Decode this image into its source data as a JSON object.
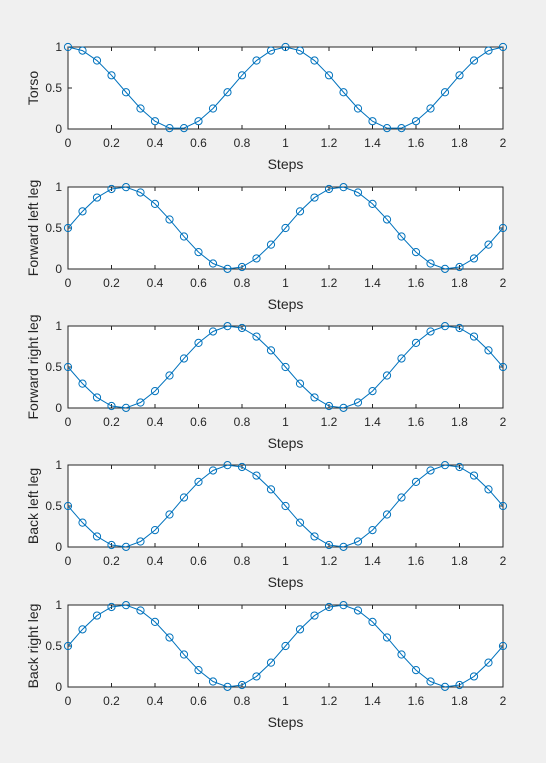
{
  "figure": {
    "background": "#f0f0f0",
    "plot_background": "#ffffff",
    "line_color": "#0072bd"
  },
  "chart_data": [
    {
      "type": "line",
      "xlabel": "Steps",
      "ylabel": "Torso",
      "xlim": [
        0,
        2
      ],
      "ylim": [
        0,
        1
      ],
      "xticks": [
        "0",
        "0.2",
        "0.4",
        "0.6",
        "0.8",
        "1",
        "1.2",
        "1.4",
        "1.6",
        "1.8",
        "2"
      ],
      "yticks": [
        "0",
        "0.5",
        "1"
      ],
      "grid": false,
      "marker": "circle",
      "series": [
        {
          "x": [
            0,
            0.0667,
            0.1333,
            0.2,
            0.2667,
            0.3333,
            0.4,
            0.4667,
            0.5333,
            0.6,
            0.6667,
            0.7333,
            0.8,
            0.8667,
            0.9333,
            1.0,
            1.0667,
            1.1333,
            1.2,
            1.2667,
            1.3333,
            1.4,
            1.4667,
            1.5333,
            1.6,
            1.6667,
            1.7333,
            1.8,
            1.8667,
            1.9333,
            2.0
          ],
          "y": [
            1.0,
            0.956,
            0.835,
            0.655,
            0.448,
            0.25,
            0.095,
            0.011,
            0.011,
            0.095,
            0.25,
            0.448,
            0.655,
            0.835,
            0.956,
            1.0,
            0.956,
            0.835,
            0.655,
            0.448,
            0.25,
            0.095,
            0.011,
            0.011,
            0.095,
            0.25,
            0.448,
            0.655,
            0.835,
            0.956,
            1.0
          ]
        }
      ]
    },
    {
      "type": "line",
      "xlabel": "Steps",
      "ylabel": "Forward left leg",
      "xlim": [
        0,
        2
      ],
      "ylim": [
        0,
        1
      ],
      "xticks": [
        "0",
        "0.2",
        "0.4",
        "0.6",
        "0.8",
        "1",
        "1.2",
        "1.4",
        "1.6",
        "1.8",
        "2"
      ],
      "yticks": [
        "0",
        "0.5",
        "1"
      ],
      "grid": false,
      "marker": "circle",
      "series": [
        {
          "x": [
            0,
            0.0667,
            0.1333,
            0.2,
            0.2667,
            0.3333,
            0.4,
            0.4667,
            0.5333,
            0.6,
            0.6667,
            0.7333,
            0.8,
            0.8667,
            0.9333,
            1.0,
            1.0667,
            1.1333,
            1.2,
            1.2667,
            1.3333,
            1.4,
            1.4667,
            1.5333,
            1.6,
            1.6667,
            1.7333,
            1.8,
            1.8667,
            1.9333,
            2.0
          ],
          "y": [
            0.5,
            0.703,
            0.871,
            0.976,
            0.998,
            0.933,
            0.794,
            0.604,
            0.396,
            0.206,
            0.067,
            0.002,
            0.024,
            0.129,
            0.297,
            0.5,
            0.703,
            0.871,
            0.976,
            0.998,
            0.933,
            0.794,
            0.604,
            0.396,
            0.206,
            0.067,
            0.002,
            0.024,
            0.129,
            0.297,
            0.5
          ]
        }
      ]
    },
    {
      "type": "line",
      "xlabel": "Steps",
      "ylabel": "Forward right leg",
      "xlim": [
        0,
        2
      ],
      "ylim": [
        0,
        1
      ],
      "xticks": [
        "0",
        "0.2",
        "0.4",
        "0.6",
        "0.8",
        "1",
        "1.2",
        "1.4",
        "1.6",
        "1.8",
        "2"
      ],
      "yticks": [
        "0",
        "0.5",
        "1"
      ],
      "grid": false,
      "marker": "circle",
      "series": [
        {
          "x": [
            0,
            0.0667,
            0.1333,
            0.2,
            0.2667,
            0.3333,
            0.4,
            0.4667,
            0.5333,
            0.6,
            0.6667,
            0.7333,
            0.8,
            0.8667,
            0.9333,
            1.0,
            1.0667,
            1.1333,
            1.2,
            1.2667,
            1.3333,
            1.4,
            1.4667,
            1.5333,
            1.6,
            1.6667,
            1.7333,
            1.8,
            1.8667,
            1.9333,
            2.0
          ],
          "y": [
            0.5,
            0.297,
            0.129,
            0.024,
            0.002,
            0.067,
            0.206,
            0.396,
            0.604,
            0.794,
            0.933,
            0.998,
            0.976,
            0.871,
            0.703,
            0.5,
            0.297,
            0.129,
            0.024,
            0.002,
            0.067,
            0.206,
            0.396,
            0.604,
            0.794,
            0.933,
            0.998,
            0.976,
            0.871,
            0.703,
            0.5
          ]
        }
      ]
    },
    {
      "type": "line",
      "xlabel": "Steps",
      "ylabel": "Back left leg",
      "xlim": [
        0,
        2
      ],
      "ylim": [
        0,
        1
      ],
      "xticks": [
        "0",
        "0.2",
        "0.4",
        "0.6",
        "0.8",
        "1",
        "1.2",
        "1.4",
        "1.6",
        "1.8",
        "2"
      ],
      "yticks": [
        "0",
        "0.5",
        "1"
      ],
      "grid": false,
      "marker": "circle",
      "series": [
        {
          "x": [
            0,
            0.0667,
            0.1333,
            0.2,
            0.2667,
            0.3333,
            0.4,
            0.4667,
            0.5333,
            0.6,
            0.6667,
            0.7333,
            0.8,
            0.8667,
            0.9333,
            1.0,
            1.0667,
            1.1333,
            1.2,
            1.2667,
            1.3333,
            1.4,
            1.4667,
            1.5333,
            1.6,
            1.6667,
            1.7333,
            1.8,
            1.8667,
            1.9333,
            2.0
          ],
          "y": [
            0.5,
            0.297,
            0.129,
            0.024,
            0.002,
            0.067,
            0.206,
            0.396,
            0.604,
            0.794,
            0.933,
            0.998,
            0.976,
            0.871,
            0.703,
            0.5,
            0.297,
            0.129,
            0.024,
            0.002,
            0.067,
            0.206,
            0.396,
            0.604,
            0.794,
            0.933,
            0.998,
            0.976,
            0.871,
            0.703,
            0.5
          ]
        }
      ]
    },
    {
      "type": "line",
      "xlabel": "Steps",
      "ylabel": "Back right leg",
      "xlim": [
        0,
        2
      ],
      "ylim": [
        0,
        1
      ],
      "xticks": [
        "0",
        "0.2",
        "0.4",
        "0.6",
        "0.8",
        "1",
        "1.2",
        "1.4",
        "1.6",
        "1.8",
        "2"
      ],
      "yticks": [
        "0",
        "0.5",
        "1"
      ],
      "grid": false,
      "marker": "circle",
      "series": [
        {
          "x": [
            0,
            0.0667,
            0.1333,
            0.2,
            0.2667,
            0.3333,
            0.4,
            0.4667,
            0.5333,
            0.6,
            0.6667,
            0.7333,
            0.8,
            0.8667,
            0.9333,
            1.0,
            1.0667,
            1.1333,
            1.2,
            1.2667,
            1.3333,
            1.4,
            1.4667,
            1.5333,
            1.6,
            1.6667,
            1.7333,
            1.8,
            1.8667,
            1.9333,
            2.0
          ],
          "y": [
            0.5,
            0.703,
            0.871,
            0.976,
            0.998,
            0.933,
            0.794,
            0.604,
            0.396,
            0.206,
            0.067,
            0.002,
            0.024,
            0.129,
            0.297,
            0.5,
            0.703,
            0.871,
            0.976,
            0.998,
            0.933,
            0.794,
            0.604,
            0.396,
            0.206,
            0.067,
            0.002,
            0.024,
            0.129,
            0.297,
            0.5
          ]
        }
      ]
    }
  ]
}
